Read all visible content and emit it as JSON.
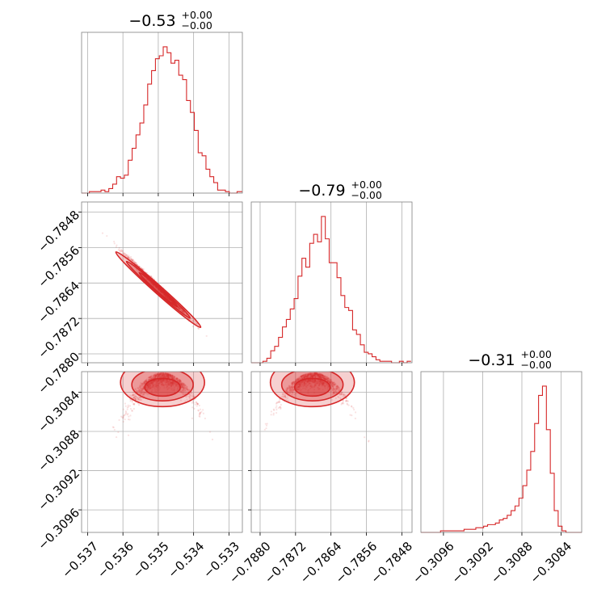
{
  "chart_data": {
    "type": "corner",
    "series_color": "#d62728",
    "grid": true,
    "parameters": [
      {
        "id": "p1",
        "title": "−0.53",
        "upper": "+0.00",
        "lower": "−0.00",
        "range": [
          -0.53717,
          -0.53262
        ],
        "ticks": [
          -0.537,
          -0.536,
          -0.535,
          -0.534,
          -0.533
        ],
        "tick_labels": [
          "−0.537",
          "−0.536",
          "−0.535",
          "−0.534",
          "−0.533"
        ],
        "hist": {
          "bin_start": -0.53717,
          "bin_width": 0.00011,
          "counts": [
            0,
            0,
            1,
            1,
            1,
            2,
            1,
            3,
            6,
            11,
            10,
            12,
            22,
            30,
            39,
            47,
            59,
            73,
            82,
            90,
            92,
            98,
            94,
            87,
            89,
            79,
            76,
            62,
            54,
            42,
            27,
            25,
            16,
            11,
            7,
            2,
            2,
            1,
            0,
            0,
            1,
            1
          ]
        }
      },
      {
        "id": "p2",
        "title": "−0.79",
        "upper": "+0.00",
        "lower": "−0.00",
        "range": [
          -0.7882,
          -0.78457
        ],
        "ticks": [
          -0.788,
          -0.7872,
          -0.7864,
          -0.7856,
          -0.7848
        ],
        "tick_labels": [
          "−0.7880",
          "−0.7872",
          "−0.7864",
          "−0.7856",
          "−0.7848"
        ],
        "hist": {
          "bin_start": -0.7882,
          "bin_width": 8.8e-05,
          "counts": [
            0,
            0,
            0,
            1,
            3,
            8,
            11,
            17,
            24,
            29,
            36,
            43,
            58,
            70,
            64,
            80,
            86,
            81,
            98,
            83,
            67,
            67,
            57,
            45,
            37,
            35,
            22,
            19,
            12,
            7,
            6,
            4,
            2,
            1,
            1,
            1,
            0,
            0,
            1,
            0,
            1
          ]
        }
      },
      {
        "id": "p3",
        "title": "−0.31",
        "upper": "+0.00",
        "lower": "−0.00",
        "range": [
          -0.30983,
          -0.30819
        ],
        "ticks": [
          -0.3096,
          -0.3092,
          -0.3088,
          -0.3084
        ],
        "tick_labels": [
          "−0.3096",
          "−0.3092",
          "−0.3088",
          "−0.3084"
        ],
        "hist": {
          "bin_start": -0.30983,
          "bin_width": 4e-05,
          "counts": [
            0,
            0,
            0,
            0,
            0,
            1,
            1,
            1,
            1,
            1,
            1,
            2,
            2,
            2,
            3,
            3,
            4,
            5,
            5,
            6,
            8,
            9,
            11,
            14,
            17,
            22,
            30,
            40,
            52,
            70,
            88,
            94,
            66,
            38,
            14,
            4,
            1,
            0,
            0,
            0,
            0
          ]
        }
      }
    ]
  }
}
